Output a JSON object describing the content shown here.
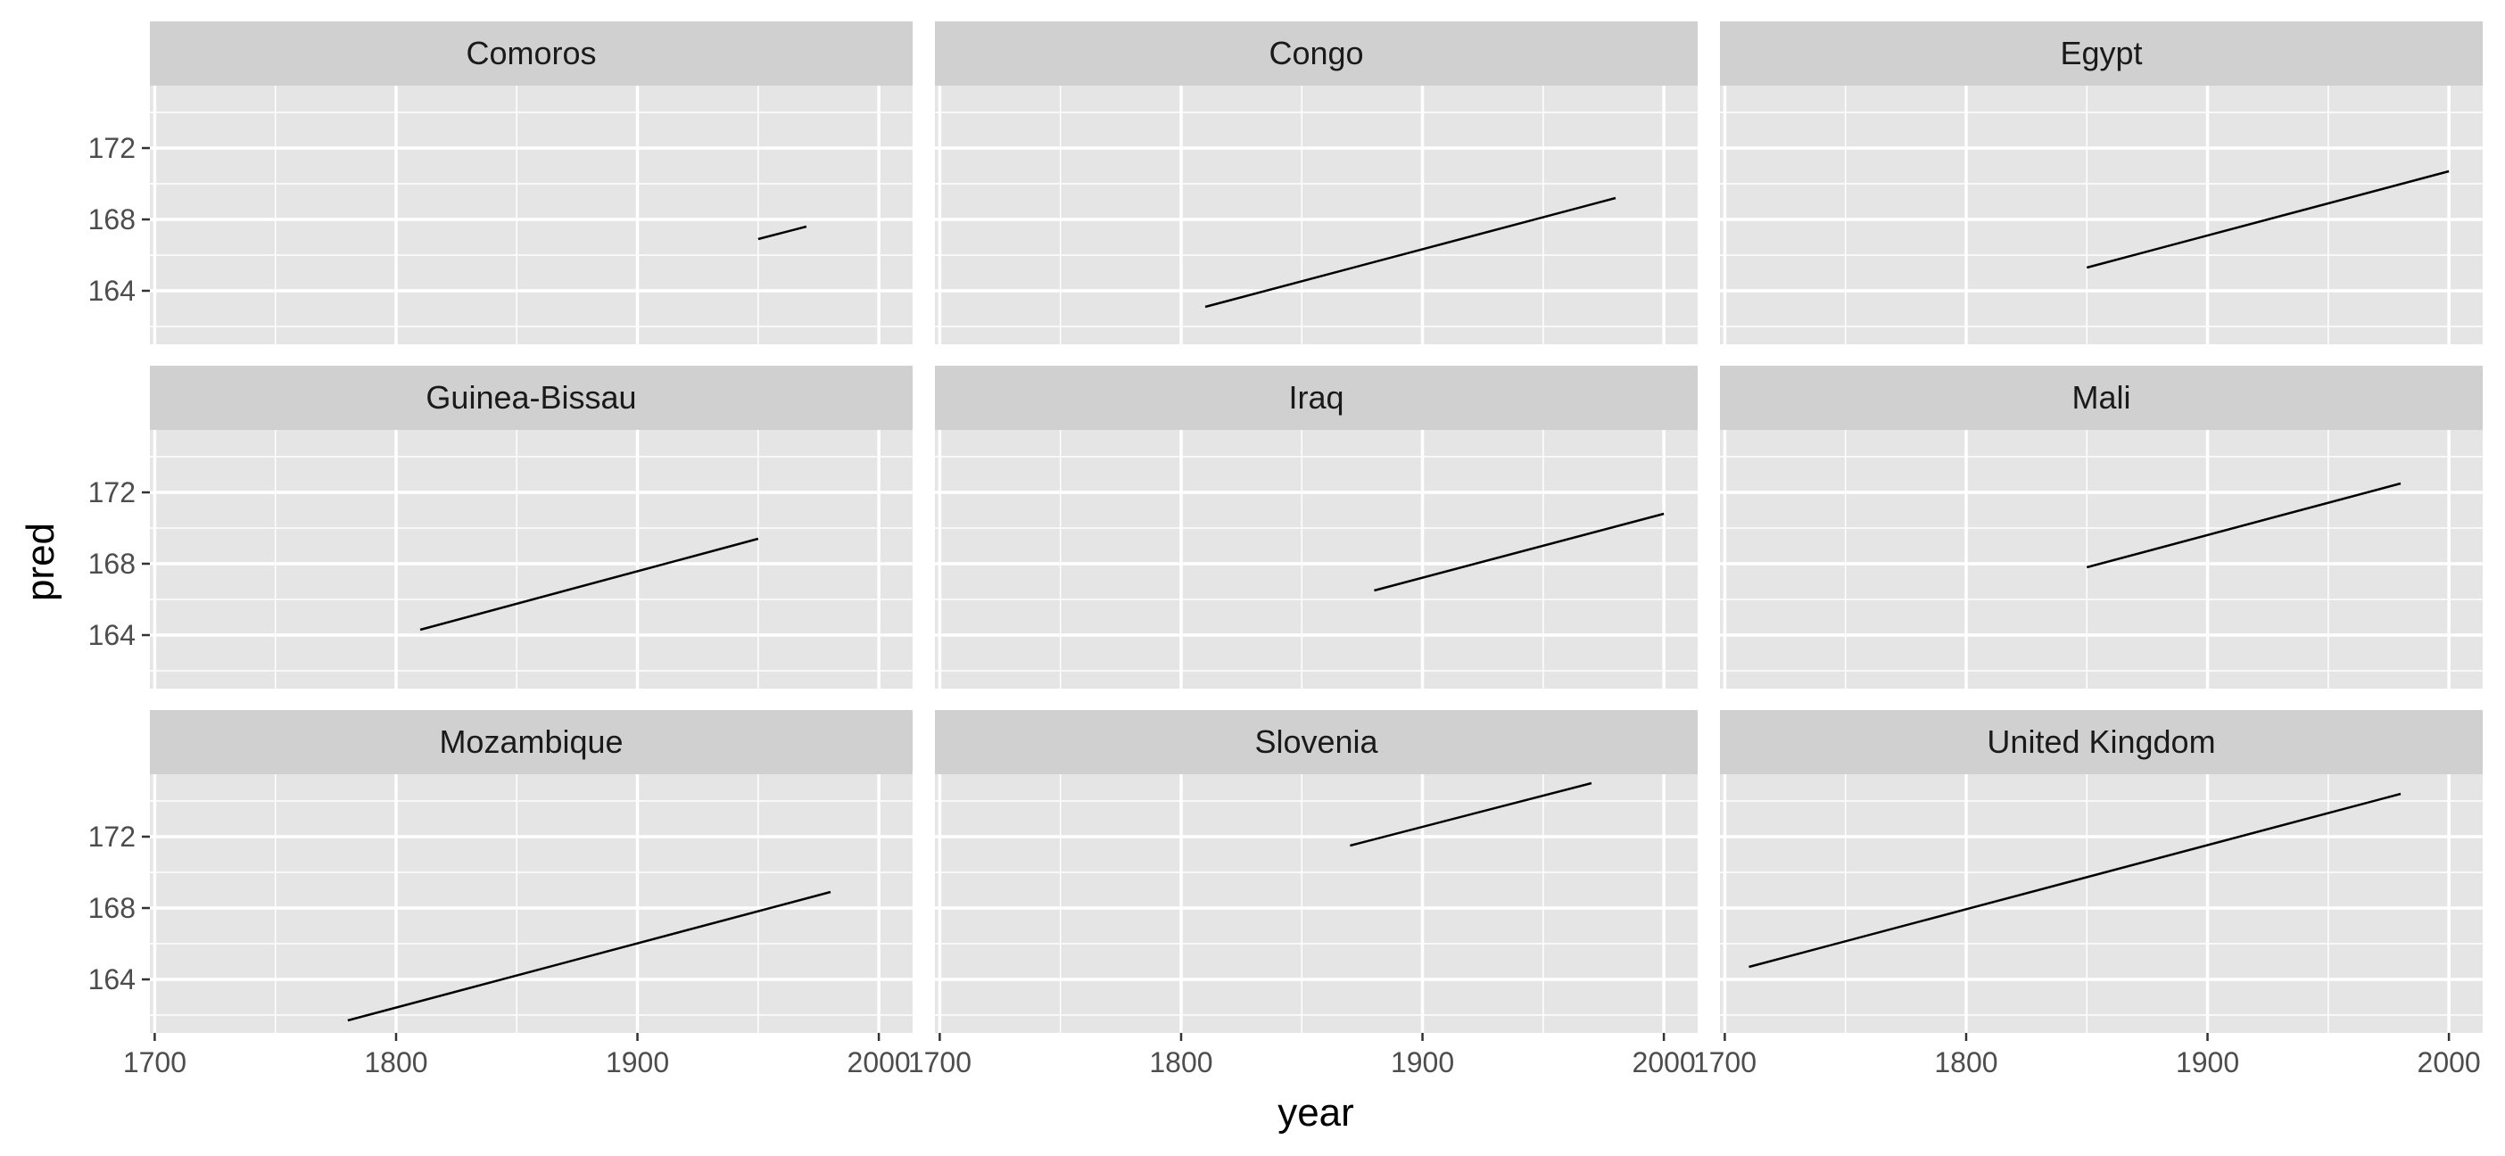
{
  "chart_data": {
    "type": "line",
    "xlabel": "year",
    "ylabel": "pred",
    "xlim": [
      1698,
      2014
    ],
    "ylim": [
      161,
      175.5
    ],
    "x_ticks": [
      1700,
      1800,
      1900,
      2000
    ],
    "x_tick_labels": [
      "1700",
      "1800",
      "1900",
      "2000"
    ],
    "y_ticks": [
      164,
      168,
      172
    ],
    "y_tick_labels": [
      "164",
      "168",
      "172"
    ],
    "grid": true,
    "layout": "facet-wrap 3x3",
    "panels": [
      {
        "label": "Comoros",
        "x": [
          1950,
          1970
        ],
        "y": [
          166.9,
          167.6
        ]
      },
      {
        "label": "Congo",
        "x": [
          1810,
          1980
        ],
        "y": [
          163.1,
          169.2
        ]
      },
      {
        "label": "Egypt",
        "x": [
          1850,
          2000
        ],
        "y": [
          165.3,
          170.7
        ]
      },
      {
        "label": "Guinea-Bissau",
        "x": [
          1810,
          1950
        ],
        "y": [
          164.3,
          169.4
        ]
      },
      {
        "label": "Iraq",
        "x": [
          1880,
          2000
        ],
        "y": [
          166.5,
          170.8
        ]
      },
      {
        "label": "Mali",
        "x": [
          1850,
          1980
        ],
        "y": [
          167.8,
          172.5
        ]
      },
      {
        "label": "Mozambique",
        "x": [
          1780,
          1980
        ],
        "y": [
          161.7,
          168.9
        ]
      },
      {
        "label": "Slovenia",
        "x": [
          1870,
          1970
        ],
        "y": [
          171.5,
          175.0
        ]
      },
      {
        "label": "United Kingdom",
        "x": [
          1710,
          1980
        ],
        "y": [
          164.7,
          174.4
        ]
      }
    ]
  },
  "colors": {
    "panel_background": "#e5e5e5",
    "strip_background": "#d0d0d0",
    "grid_line": "#ffffff",
    "series_line": "#000000",
    "tick_mark": "#333333"
  }
}
